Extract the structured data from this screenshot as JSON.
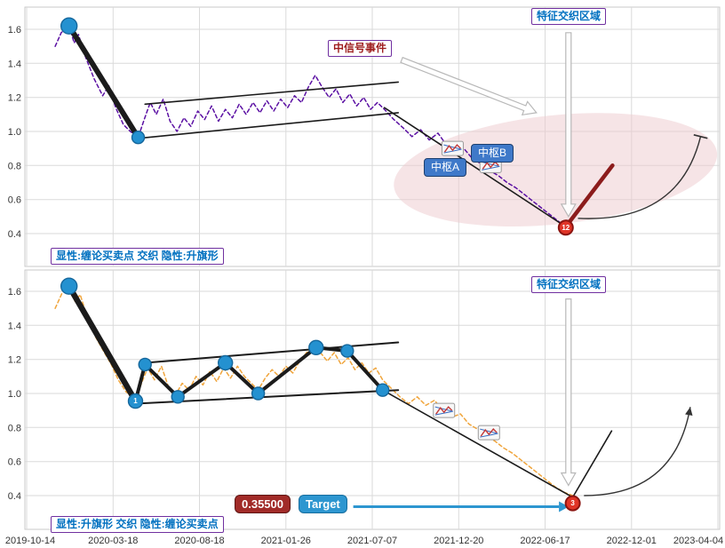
{
  "labels": {
    "top_caption": "显性:缠论买卖点 交织 隐性:升旗形",
    "bottom_caption": "显性:升旗形 交织 隐性:缠论买卖点",
    "feature_zone_top": "特征交织区域",
    "feature_zone_bottom": "特征交织区域",
    "signal_event": "中信号事件",
    "pivot_a": "中枢A",
    "pivot_b": "中枢B",
    "target_value": "0.35500",
    "target_label": "Target"
  },
  "colors": {
    "price_top": "#5b10a3",
    "price_bottom": "#f0a53c",
    "trend": "#1b1b1b",
    "projection_top": "#8c1c1c",
    "dot": "#2491d0",
    "dot_edge": "#15679c",
    "signal_fill": "#e03427",
    "signal_edge": "#8b1410",
    "zone_fill": "#eec9cd",
    "accent_blue": "#0070c0",
    "accent_purple": "#7030a0",
    "accent_darkred": "#9e1d1d",
    "target_fill": "#2d96d0",
    "grid": "#dadada"
  },
  "axes": {
    "x_tick_labels": [
      "2019-10-14",
      "2020-03-18",
      "2020-08-18",
      "2021-01-26",
      "2021-07-07",
      "2021-12-20",
      "2022-06-17",
      "2022-12-01",
      "2023-04-04"
    ],
    "y_tick_labels": [
      "0.4",
      "0.6",
      "0.8",
      "1.0",
      "1.2",
      "1.4",
      "1.6"
    ]
  },
  "chart_data": [
    {
      "type": "line",
      "panel": "top",
      "title": "",
      "x_unit": "tick_index (0 = 2019-10-14, 1 unit = one x-axis tick)",
      "ylim": [
        0.22,
        1.72
      ],
      "y_ticks": [
        0.4,
        0.6,
        0.8,
        1.0,
        1.2,
        1.4,
        1.6
      ],
      "series": [
        {
          "name": "price-line-top",
          "color": "#5b10a3",
          "dash": "4 3",
          "width": 1.5,
          "points": [
            [
              0.33,
              1.5
            ],
            [
              0.4,
              1.58
            ],
            [
              0.49,
              1.62
            ],
            [
              0.55,
              1.52
            ],
            [
              0.6,
              1.57
            ],
            [
              0.68,
              1.44
            ],
            [
              0.78,
              1.31
            ],
            [
              0.88,
              1.21
            ],
            [
              0.95,
              1.27
            ],
            [
              1.03,
              1.14
            ],
            [
              1.12,
              1.04
            ],
            [
              1.2,
              1.0
            ],
            [
              1.29,
              0.965
            ],
            [
              1.36,
              1.07
            ],
            [
              1.43,
              1.17
            ],
            [
              1.5,
              1.1
            ],
            [
              1.58,
              1.19
            ],
            [
              1.66,
              1.06
            ],
            [
              1.74,
              1.0
            ],
            [
              1.82,
              1.08
            ],
            [
              1.9,
              1.03
            ],
            [
              1.98,
              1.12
            ],
            [
              2.06,
              1.07
            ],
            [
              2.14,
              1.15
            ],
            [
              2.22,
              1.06
            ],
            [
              2.3,
              1.13
            ],
            [
              2.38,
              1.08
            ],
            [
              2.46,
              1.16
            ],
            [
              2.54,
              1.1
            ],
            [
              2.62,
              1.17
            ],
            [
              2.7,
              1.11
            ],
            [
              2.78,
              1.18
            ],
            [
              2.86,
              1.12
            ],
            [
              2.94,
              1.19
            ],
            [
              3.02,
              1.14
            ],
            [
              3.1,
              1.21
            ],
            [
              3.18,
              1.17
            ],
            [
              3.26,
              1.26
            ],
            [
              3.34,
              1.33
            ],
            [
              3.42,
              1.26
            ],
            [
              3.5,
              1.2
            ],
            [
              3.58,
              1.25
            ],
            [
              3.66,
              1.17
            ],
            [
              3.74,
              1.22
            ],
            [
              3.82,
              1.15
            ],
            [
              3.9,
              1.2
            ],
            [
              3.98,
              1.13
            ],
            [
              4.06,
              1.17
            ],
            [
              4.14,
              1.13
            ],
            [
              4.25,
              1.07
            ],
            [
              4.36,
              1.02
            ],
            [
              4.46,
              0.97
            ],
            [
              4.56,
              1.01
            ],
            [
              4.66,
              0.95
            ],
            [
              4.76,
              0.99
            ],
            [
              4.86,
              0.92
            ],
            [
              4.96,
              0.88
            ],
            [
              5.06,
              0.9
            ],
            [
              5.16,
              0.84
            ],
            [
              5.26,
              0.81
            ],
            [
              5.36,
              0.77
            ],
            [
              5.46,
              0.74
            ],
            [
              5.56,
              0.7
            ],
            [
              5.66,
              0.67
            ],
            [
              5.76,
              0.63
            ],
            [
              5.86,
              0.59
            ],
            [
              5.96,
              0.55
            ],
            [
              6.06,
              0.51
            ],
            [
              6.16,
              0.47
            ],
            [
              6.24,
              0.44
            ]
          ]
        },
        {
          "name": "impulse-line",
          "color": "#1b1b1b",
          "width": 6,
          "points": [
            [
              0.49,
              1.62
            ],
            [
              1.29,
              0.965
            ]
          ]
        },
        {
          "name": "flag-channel-top",
          "color": "#1b1b1b",
          "width": 1.6,
          "points": [
            [
              1.37,
              1.16
            ],
            [
              4.3,
              1.29
            ]
          ]
        },
        {
          "name": "flag-channel-bottom",
          "color": "#1b1b1b",
          "width": 1.6,
          "points": [
            [
              1.3,
              0.96
            ],
            [
              4.3,
              1.11
            ]
          ]
        },
        {
          "name": "decline-line",
          "color": "#1b1b1b",
          "width": 1.6,
          "points": [
            [
              4.14,
              1.14
            ],
            [
              6.24,
              0.44
            ]
          ]
        },
        {
          "name": "projection-line",
          "color": "#8c1c1c",
          "width": 4.5,
          "points": [
            [
              6.24,
              0.44
            ],
            [
              6.78,
              0.8
            ]
          ]
        }
      ],
      "markers": [
        {
          "shape": "dot",
          "t": 0.49,
          "v": 1.62,
          "r": 9
        },
        {
          "shape": "dot",
          "t": 1.29,
          "v": 0.965,
          "r": 7
        },
        {
          "shape": "signal",
          "t": 6.24,
          "v": 0.435,
          "r": 8,
          "label": "12"
        }
      ],
      "pennants": [
        {
          "t": 4.93,
          "v": 0.9
        },
        {
          "t": 5.37,
          "v": 0.8
        }
      ],
      "zone_ellipse": {
        "t": 6.12,
        "v": 0.775,
        "rt": 1.88,
        "rv": 0.32,
        "rotate": -6
      },
      "arrows": [
        {
          "kind": "hollow",
          "from": [
            4.34,
            1.42
          ],
          "to": [
            5.9,
            1.11
          ]
        },
        {
          "kind": "hollow",
          "from": [
            6.27,
            1.58
          ],
          "to": [
            6.27,
            0.5
          ]
        },
        {
          "kind": "arc",
          "from": [
            6.38,
            0.49
          ],
          "ctrl": [
            7.55,
            0.46
          ],
          "to": [
            7.8,
            0.97
          ],
          "end": "tick"
        }
      ]
    },
    {
      "type": "line",
      "panel": "bottom",
      "title": "",
      "x_unit": "tick_index (0 = 2019-10-14, 1 unit = one x-axis tick)",
      "ylim": [
        0.22,
        1.72
      ],
      "y_ticks": [
        0.4,
        0.6,
        0.8,
        1.0,
        1.2,
        1.4,
        1.6
      ],
      "series": [
        {
          "name": "price-line-bottom",
          "color": "#f0a53c",
          "dash": "4 3",
          "width": 1.5,
          "points": [
            [
              0.33,
              1.5
            ],
            [
              0.41,
              1.59
            ],
            [
              0.49,
              1.64
            ],
            [
              0.56,
              1.54
            ],
            [
              0.62,
              1.58
            ],
            [
              0.7,
              1.45
            ],
            [
              0.8,
              1.33
            ],
            [
              0.9,
              1.24
            ],
            [
              0.98,
              1.17
            ],
            [
              1.06,
              1.08
            ],
            [
              1.15,
              1.01
            ],
            [
              1.26,
              0.97
            ],
            [
              1.33,
              1.06
            ],
            [
              1.4,
              1.15
            ],
            [
              1.48,
              1.08
            ],
            [
              1.56,
              1.16
            ],
            [
              1.64,
              1.04
            ],
            [
              1.72,
              0.99
            ],
            [
              1.8,
              1.06
            ],
            [
              1.88,
              1.02
            ],
            [
              1.96,
              1.1
            ],
            [
              2.04,
              1.05
            ],
            [
              2.12,
              1.13
            ],
            [
              2.2,
              1.07
            ],
            [
              2.28,
              1.15
            ],
            [
              2.36,
              1.09
            ],
            [
              2.44,
              1.16
            ],
            [
              2.52,
              1.1
            ],
            [
              2.6,
              1.06
            ],
            [
              2.68,
              1.02
            ],
            [
              2.76,
              1.09
            ],
            [
              2.84,
              1.14
            ],
            [
              2.92,
              1.1
            ],
            [
              3.0,
              1.16
            ],
            [
              3.08,
              1.12
            ],
            [
              3.16,
              1.19
            ],
            [
              3.24,
              1.24
            ],
            [
              3.32,
              1.29
            ],
            [
              3.4,
              1.24
            ],
            [
              3.48,
              1.19
            ],
            [
              3.56,
              1.24
            ],
            [
              3.64,
              1.17
            ],
            [
              3.72,
              1.21
            ],
            [
              3.8,
              1.14
            ],
            [
              3.88,
              1.18
            ],
            [
              3.96,
              1.12
            ],
            [
              4.04,
              1.15
            ],
            [
              4.12,
              1.08
            ],
            [
              4.22,
              1.03
            ],
            [
              4.32,
              0.98
            ],
            [
              4.42,
              0.94
            ],
            [
              4.52,
              0.98
            ],
            [
              4.62,
              0.93
            ],
            [
              4.72,
              0.96
            ],
            [
              4.82,
              0.9
            ],
            [
              4.92,
              0.86
            ],
            [
              5.02,
              0.88
            ],
            [
              5.12,
              0.82
            ],
            [
              5.22,
              0.79
            ],
            [
              5.32,
              0.75
            ],
            [
              5.42,
              0.72
            ],
            [
              5.52,
              0.68
            ],
            [
              5.62,
              0.65
            ],
            [
              5.72,
              0.61
            ],
            [
              5.82,
              0.57
            ],
            [
              5.92,
              0.53
            ],
            [
              6.02,
              0.49
            ],
            [
              6.12,
              0.45
            ],
            [
              6.22,
              0.42
            ],
            [
              6.32,
              0.4
            ]
          ]
        },
        {
          "name": "zigzag-line",
          "color": "#1b1b1b",
          "width": 4,
          "points": [
            [
              0.49,
              1.63
            ],
            [
              1.26,
              0.955
            ],
            [
              1.37,
              1.17
            ],
            [
              1.75,
              0.98
            ],
            [
              2.3,
              1.18
            ],
            [
              2.68,
              1.0
            ],
            [
              3.35,
              1.27
            ],
            [
              3.71,
              1.25
            ],
            [
              4.12,
              1.02
            ]
          ]
        },
        {
          "name": "zigzag-impulse",
          "color": "#1b1b1b",
          "width": 6.5,
          "points": [
            [
              0.49,
              1.63
            ],
            [
              1.26,
              0.955
            ]
          ]
        },
        {
          "name": "flag-channel-top",
          "color": "#1b1b1b",
          "width": 2,
          "points": [
            [
              1.37,
              1.18
            ],
            [
              4.3,
              1.3
            ]
          ]
        },
        {
          "name": "flag-channel-bottom",
          "color": "#1b1b1b",
          "width": 2,
          "points": [
            [
              1.26,
              0.94
            ],
            [
              4.3,
              1.02
            ]
          ]
        },
        {
          "name": "decline-line",
          "color": "#1b1b1b",
          "width": 1.6,
          "points": [
            [
              4.12,
              1.02
            ],
            [
              6.32,
              0.39
            ]
          ]
        },
        {
          "name": "projection-line",
          "color": "#1b1b1b",
          "width": 1.6,
          "points": [
            [
              6.32,
              0.39
            ],
            [
              6.77,
              0.78
            ]
          ]
        }
      ],
      "markers": [
        {
          "shape": "dot",
          "t": 0.49,
          "v": 1.63,
          "r": 9
        },
        {
          "shape": "dot",
          "t": 1.26,
          "v": 0.955,
          "r": 8,
          "label": "1"
        },
        {
          "shape": "dot",
          "t": 1.37,
          "v": 1.17,
          "r": 7
        },
        {
          "shape": "dot",
          "t": 1.75,
          "v": 0.98,
          "r": 7
        },
        {
          "shape": "dot",
          "t": 2.3,
          "v": 1.18,
          "r": 8
        },
        {
          "shape": "dot",
          "t": 2.68,
          "v": 1.0,
          "r": 7
        },
        {
          "shape": "dot",
          "t": 3.35,
          "v": 1.27,
          "r": 8
        },
        {
          "shape": "dot",
          "t": 3.71,
          "v": 1.25,
          "r": 7
        },
        {
          "shape": "dot",
          "t": 4.12,
          "v": 1.02,
          "r": 7
        },
        {
          "shape": "signal",
          "t": 6.32,
          "v": 0.355,
          "r": 8,
          "label": "3"
        }
      ],
      "pennants": [
        {
          "t": 4.83,
          "v": 0.9
        },
        {
          "t": 5.35,
          "v": 0.77
        }
      ],
      "arrows": [
        {
          "kind": "hollow",
          "from": [
            6.27,
            1.555
          ],
          "to": [
            6.27,
            0.46
          ]
        },
        {
          "kind": "arc",
          "from": [
            6.45,
            0.4
          ],
          "ctrl": [
            7.5,
            0.4
          ],
          "to": [
            7.68,
            0.92
          ],
          "end": "arrow"
        },
        {
          "kind": "target",
          "from": [
            3.78,
            0.335
          ],
          "to": [
            6.16,
            0.335
          ]
        }
      ]
    }
  ]
}
